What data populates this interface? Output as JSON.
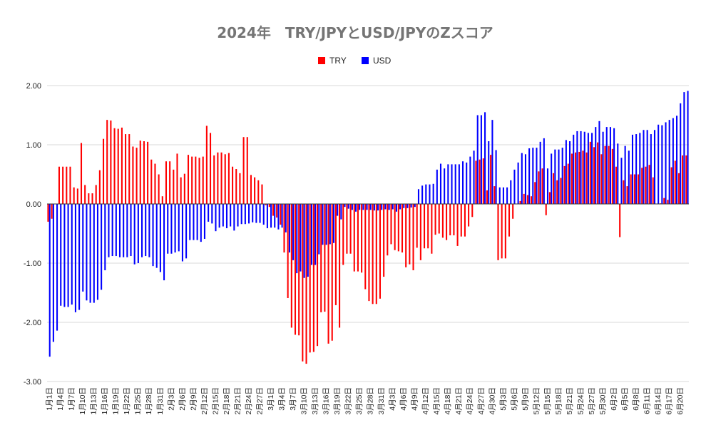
{
  "chart_data": {
    "type": "bar",
    "title": "2024年　TRY/JPYとUSD/JPYのZスコア",
    "legend_position": "top-center",
    "ylim": [
      -3,
      2
    ],
    "yticks": [
      "2.00",
      "1.00",
      "0.00",
      "-1.00",
      "-2.00",
      "-3.00"
    ],
    "grid": true,
    "categories": [
      "1月1日",
      "1月2日",
      "1月3日",
      "1月4日",
      "1月5日",
      "1月6日",
      "1月7日",
      "1月8日",
      "1月9日",
      "1月10日",
      "1月11日",
      "1月12日",
      "1月13日",
      "1月14日",
      "1月15日",
      "1月16日",
      "1月17日",
      "1月18日",
      "1月19日",
      "1月20日",
      "1月21日",
      "1月22日",
      "1月23日",
      "1月24日",
      "1月25日",
      "1月26日",
      "1月27日",
      "1月28日",
      "1月29日",
      "1月30日",
      "1月31日",
      "2月1日",
      "2月2日",
      "2月3日",
      "2月4日",
      "2月5日",
      "2月6日",
      "2月7日",
      "2月8日",
      "2月9日",
      "2月10日",
      "2月11日",
      "2月12日",
      "2月13日",
      "2月14日",
      "2月15日",
      "2月16日",
      "2月17日",
      "2月18日",
      "2月19日",
      "2月20日",
      "2月21日",
      "2月22日",
      "2月23日",
      "2月24日",
      "2月25日",
      "2月26日",
      "2月27日",
      "2月28日",
      "2月29日",
      "3月1日",
      "3月2日",
      "3月3日",
      "3月4日",
      "3月5日",
      "3月6日",
      "3月7日",
      "3月8日",
      "3月9日",
      "3月10日",
      "3月11日",
      "3月12日",
      "3月13日",
      "3月14日",
      "3月15日",
      "3月16日",
      "3月17日",
      "3月18日",
      "3月19日",
      "3月20日",
      "3月21日",
      "3月22日",
      "3月23日",
      "3月24日",
      "3月25日",
      "3月26日",
      "3月27日",
      "3月28日",
      "3月29日",
      "3月30日",
      "3月31日",
      "4月1日",
      "4月2日",
      "4月3日",
      "4月4日",
      "4月5日",
      "4月6日",
      "4月7日",
      "4月8日",
      "4月9日",
      "4月10日",
      "4月11日",
      "4月12日",
      "4月13日",
      "4月14日",
      "4月15日",
      "4月16日",
      "4月17日",
      "4月18日",
      "4月19日",
      "4月20日",
      "4月21日",
      "4月22日",
      "4月23日",
      "4月24日",
      "4月25日",
      "4月26日",
      "4月27日",
      "4月28日",
      "4月29日",
      "4月30日",
      "5月1日",
      "5月2日",
      "5月3日",
      "5月4日",
      "5月5日",
      "5月6日",
      "5月7日",
      "5月8日",
      "5月9日",
      "5月10日",
      "5月11日",
      "5月12日",
      "5月13日",
      "5月14日",
      "5月15日",
      "5月16日",
      "5月17日",
      "5月18日",
      "5月19日",
      "5月20日",
      "5月21日",
      "5月22日",
      "5月23日",
      "5月24日",
      "5月25日",
      "5月26日",
      "5月27日",
      "5月28日",
      "5月29日",
      "5月30日",
      "5月31日",
      "6月1日",
      "6月2日",
      "6月3日",
      "6月4日",
      "6月5日",
      "6月6日",
      "6月7日",
      "6月8日",
      "6月9日",
      "6月10日",
      "6月11日",
      "6月12日",
      "6月13日",
      "6月14日",
      "6月15日",
      "6月16日",
      "6月17日",
      "6月18日",
      "6月19日",
      "6月20日",
      "6月21日",
      "6月22日"
    ],
    "series": [
      {
        "name": "TRY",
        "color": "#ff0000",
        "values": [
          -0.3,
          -0.25,
          0.0,
          0.63,
          0.63,
          0.63,
          0.63,
          0.28,
          0.26,
          1.03,
          0.32,
          0.18,
          0.18,
          0.32,
          0.57,
          1.1,
          1.42,
          1.41,
          1.28,
          1.27,
          1.29,
          1.18,
          1.18,
          0.97,
          0.95,
          1.07,
          1.06,
          1.05,
          0.75,
          0.68,
          0.5,
          0.13,
          0.72,
          0.72,
          0.58,
          0.85,
          0.45,
          0.51,
          0.83,
          0.8,
          0.8,
          0.78,
          0.8,
          1.32,
          1.2,
          0.82,
          0.87,
          0.87,
          0.84,
          0.86,
          0.63,
          0.59,
          0.52,
          1.13,
          1.13,
          0.49,
          0.45,
          0.4,
          0.33,
          -0.02,
          -0.05,
          -0.2,
          -0.23,
          -0.35,
          -0.82,
          -1.59,
          -2.09,
          -2.21,
          -2.22,
          -2.66,
          -2.7,
          -2.51,
          -2.5,
          -2.4,
          -1.83,
          -1.82,
          -2.36,
          -2.31,
          -1.71,
          -2.09,
          -1.03,
          -0.84,
          -0.84,
          -1.14,
          -1.14,
          -1.16,
          -1.44,
          -1.64,
          -1.69,
          -1.69,
          -1.6,
          -1.23,
          -0.87,
          -0.68,
          -0.78,
          -0.8,
          -0.82,
          -1.07,
          -1.02,
          -1.12,
          -0.74,
          -0.95,
          -0.75,
          -0.75,
          -0.84,
          -0.52,
          -0.5,
          -0.57,
          -0.61,
          -0.53,
          -0.53,
          -0.71,
          -0.55,
          -0.55,
          -0.38,
          -0.22,
          0.73,
          0.75,
          0.77,
          0.23,
          0.83,
          0.3,
          -0.95,
          -0.92,
          -0.92,
          -0.55,
          -0.25,
          0.0,
          0.05,
          0.17,
          0.15,
          0.13,
          0.37,
          0.55,
          0.6,
          -0.19,
          0.2,
          0.52,
          0.4,
          0.44,
          0.64,
          0.68,
          0.85,
          0.87,
          0.88,
          0.9,
          0.87,
          1.05,
          0.96,
          1.04,
          0.84,
          0.98,
          0.98,
          0.93,
          0.63,
          -0.56,
          0.4,
          0.3,
          0.5,
          0.5,
          0.5,
          0.61,
          0.63,
          0.66,
          0.45,
          0.0,
          0.01,
          0.1,
          0.07,
          0.62,
          0.73,
          0.52,
          0.82,
          0.82
        ]
      },
      {
        "name": "USD",
        "color": "#0000ff",
        "values": [
          -2.58,
          -2.33,
          -2.14,
          -1.72,
          -1.74,
          -1.74,
          -1.7,
          -1.83,
          -1.79,
          -1.48,
          -1.63,
          -1.67,
          -1.67,
          -1.62,
          -1.45,
          -1.12,
          -0.9,
          -0.88,
          -0.88,
          -0.9,
          -0.9,
          -0.9,
          -0.88,
          -1.02,
          -1.0,
          -0.9,
          -0.88,
          -0.9,
          -1.05,
          -1.08,
          -1.15,
          -1.29,
          -0.84,
          -0.84,
          -0.82,
          -0.8,
          -0.97,
          -0.92,
          -0.61,
          -0.61,
          -0.61,
          -0.64,
          -0.59,
          -0.3,
          -0.33,
          -0.46,
          -0.4,
          -0.38,
          -0.41,
          -0.38,
          -0.45,
          -0.38,
          -0.34,
          -0.34,
          -0.33,
          -0.31,
          -0.32,
          -0.32,
          -0.35,
          -0.41,
          -0.4,
          -0.4,
          -0.43,
          -0.4,
          -0.48,
          -0.82,
          -0.95,
          -1.17,
          -1.14,
          -1.25,
          -1.23,
          -1.03,
          -1.03,
          -0.85,
          -0.69,
          -0.69,
          -0.68,
          -0.66,
          -0.2,
          -0.26,
          -0.05,
          -0.08,
          -0.1,
          -0.13,
          -0.1,
          -0.1,
          -0.1,
          -0.1,
          -0.11,
          -0.11,
          -0.1,
          -0.09,
          -0.1,
          -0.09,
          -0.13,
          -0.09,
          -0.07,
          -0.07,
          -0.06,
          -0.05,
          0.25,
          0.31,
          0.33,
          0.33,
          0.34,
          0.58,
          0.68,
          0.6,
          0.67,
          0.67,
          0.67,
          0.67,
          0.72,
          0.7,
          0.8,
          0.9,
          1.5,
          1.5,
          1.55,
          1.06,
          1.42,
          0.91,
          0.28,
          0.28,
          0.28,
          0.4,
          0.58,
          0.7,
          0.86,
          0.84,
          0.94,
          0.95,
          0.95,
          1.05,
          1.11,
          0.6,
          0.85,
          0.92,
          0.92,
          0.95,
          1.08,
          1.06,
          1.17,
          1.23,
          1.23,
          1.22,
          1.2,
          1.2,
          1.3,
          1.4,
          1.22,
          1.3,
          1.3,
          1.28,
          1.02,
          0.78,
          0.98,
          0.9,
          1.17,
          1.18,
          1.2,
          1.25,
          1.25,
          1.18,
          1.25,
          1.34,
          1.33,
          1.38,
          1.42,
          1.45,
          1.49,
          1.7,
          1.89,
          1.91
        ]
      }
    ]
  }
}
